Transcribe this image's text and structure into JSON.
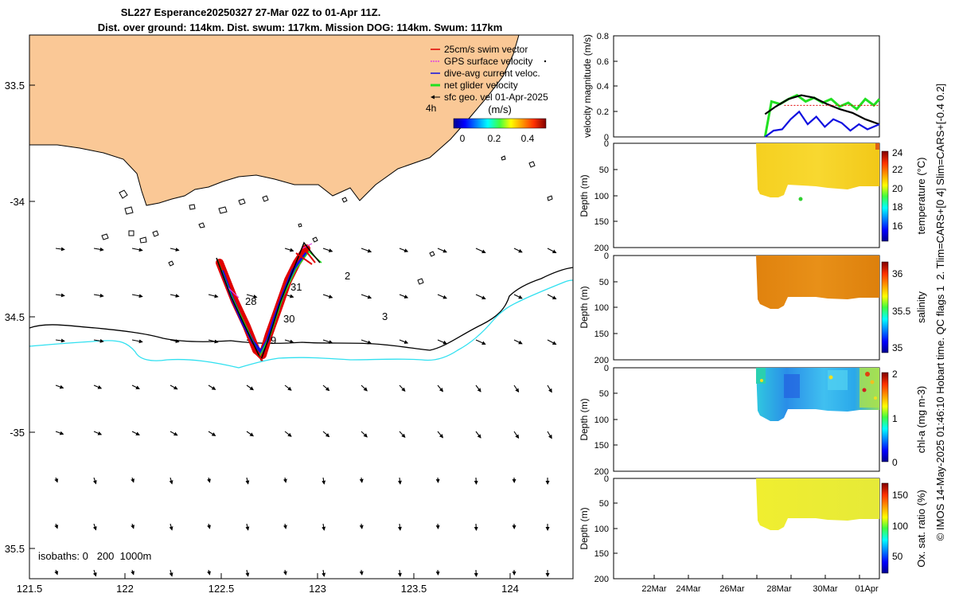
{
  "header": {
    "line1": "SL227 Esperance20250327 27-Mar 02Z to 01-Apr 11Z.",
    "line2": "Dist. over ground: 114km. Dist. swum: 117km. Mission DOG: 114km. Swum: 117km"
  },
  "map": {
    "lon_ticks": [
      "121.5",
      "122",
      "122.5",
      "123",
      "123.5",
      "124"
    ],
    "lat_ticks": [
      "33.5",
      "-34",
      "34.5",
      "-35",
      "35.5"
    ],
    "legend": [
      {
        "label": "25cm/s swim vector",
        "color": "#e00000"
      },
      {
        "label": "GPS surface velocity",
        "color": "#e040e0"
      },
      {
        "label": "dive-avg current veloc.",
        "color": "#1010e0"
      },
      {
        "label": "net glider velocity",
        "color": "#20e020"
      },
      {
        "label": "sfc geo. vel 01-Apr-2025",
        "color": "#000000"
      }
    ],
    "four_h": "4h",
    "colorbar_title": "(m/s)",
    "colorbar_ticks": [
      "0",
      "0.2",
      "0.4"
    ],
    "day_labels": [
      "28",
      "30",
      "31",
      "2",
      "3",
      "9"
    ],
    "isobaths": "isobaths: 0   200  1000m",
    "land_color": "#fac896",
    "isobath_200_color": "#000000",
    "isobath_1000_color": "#30e0f0"
  },
  "panels": {
    "x_ticks": [
      "22Mar",
      "24Mar",
      "26Mar",
      "28Mar",
      "30Mar",
      "01Apr"
    ],
    "velocity": {
      "ylabel": "velocity magnitude (m/s)",
      "y_ticks": [
        "0",
        "0.2",
        "0.4",
        "0.6",
        "0.8"
      ]
    },
    "depth_ticks": [
      "0",
      "50",
      "100",
      "150",
      "200"
    ],
    "depth_label": "Depth (m)",
    "temperature": {
      "cbar_label": "temperature (°C)",
      "cbar_ticks": [
        "24",
        "22",
        "20",
        "18",
        "16"
      ]
    },
    "salinity": {
      "cbar_label": "salinity",
      "cbar_ticks": [
        "36",
        "35.5",
        "35"
      ]
    },
    "chla": {
      "cbar_label": "chl-a (mg m-3)",
      "cbar_ticks": [
        "2",
        "1",
        "0"
      ]
    },
    "oxygen": {
      "cbar_label": "Ox. sat. ratio (%)",
      "cbar_ticks": [
        "150",
        "100",
        "50"
      ]
    }
  },
  "side_note": "© IMOS 14-May-2025 01:46:10 Hobart time. QC flags 1  2. Tlim=CARS+[0 4] Slim=CARS+[-0.4 0.2]",
  "chart_data": [
    {
      "type": "map",
      "title": "SL227 Esperance20250327 27-Mar 02Z to 01-Apr 11Z.",
      "xlabel": "longitude",
      "ylabel": "latitude",
      "xlim": [
        121.5,
        124.3
      ],
      "ylim": [
        -35.65,
        -33.3
      ],
      "glider_track": [
        {
          "lon": 122.48,
          "lat": -34.25
        },
        {
          "lon": 122.56,
          "lat": -34.4
        },
        {
          "lon": 122.62,
          "lat": -34.52
        },
        {
          "lon": 122.7,
          "lat": -34.65
        },
        {
          "lon": 122.76,
          "lat": -34.55
        },
        {
          "lon": 122.85,
          "lat": -34.4
        },
        {
          "lon": 122.9,
          "lat": -34.3
        },
        {
          "lon": 122.95,
          "lat": -34.19
        },
        {
          "lon": 123.02,
          "lat": -34.27
        }
      ]
    },
    {
      "type": "line",
      "title": "velocity magnitude",
      "ylabel": "velocity magnitude (m/s)",
      "ylim": [
        0,
        0.8
      ],
      "x_range": [
        "20Mar",
        "01Apr 11Z"
      ],
      "series": [
        {
          "name": "net glider velocity",
          "color": "#20e020",
          "x": [
            27.1,
            27.4,
            27.8,
            28.2,
            28.6,
            29.0,
            29.4,
            29.8,
            30.2,
            30.6,
            31.0,
            31.4,
            31.8,
            32.2,
            32.46
          ],
          "values": [
            0.0,
            0.28,
            0.26,
            0.3,
            0.33,
            0.28,
            0.31,
            0.27,
            0.3,
            0.24,
            0.27,
            0.22,
            0.3,
            0.25,
            0.3
          ]
        },
        {
          "name": "sfc geo. vel",
          "color": "#000000",
          "x": [
            27.1,
            27.6,
            28.2,
            28.8,
            29.4,
            30.0,
            30.6,
            31.2,
            31.8,
            32.46
          ],
          "values": [
            0.18,
            0.24,
            0.3,
            0.33,
            0.31,
            0.26,
            0.22,
            0.19,
            0.14,
            0.1
          ]
        },
        {
          "name": "dive-avg current",
          "color": "#1010e0",
          "x": [
            27.1,
            27.5,
            27.9,
            28.3,
            28.7,
            29.1,
            29.5,
            29.9,
            30.3,
            30.7,
            31.1,
            31.5,
            31.9,
            32.46
          ],
          "values": [
            0.0,
            0.05,
            0.06,
            0.14,
            0.2,
            0.1,
            0.16,
            0.08,
            0.14,
            0.11,
            0.05,
            0.1,
            0.06,
            0.1
          ]
        }
      ]
    },
    {
      "type": "heatmap",
      "title": "temperature",
      "zlabel": "temperature (°C)",
      "zlim": [
        15,
        24
      ],
      "ylim": [
        0,
        200
      ],
      "approx_value": 23
    },
    {
      "type": "heatmap",
      "title": "salinity",
      "zlabel": "salinity",
      "zlim": [
        34.9,
        36.2
      ],
      "ylim": [
        0,
        200
      ],
      "approx_value": 35.95
    },
    {
      "type": "heatmap",
      "title": "chl-a",
      "zlabel": "chl-a (mg m-3)",
      "zlim": [
        0,
        2
      ],
      "ylim": [
        0,
        200
      ],
      "approx_value": 0.6
    },
    {
      "type": "heatmap",
      "title": "oxygen",
      "zlabel": "Ox. sat. ratio (%)",
      "zlim": [
        20,
        175
      ],
      "ylim": [
        0,
        200
      ],
      "approx_value": 135
    }
  ]
}
